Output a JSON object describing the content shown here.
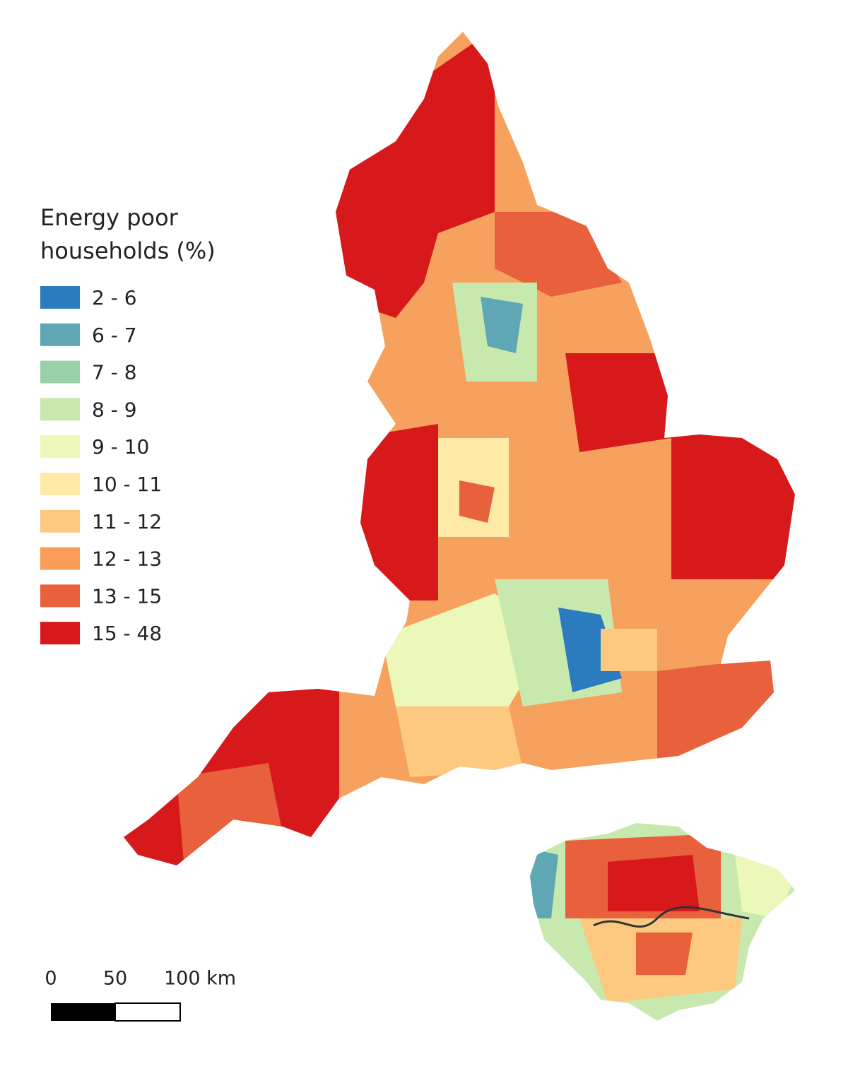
{
  "legend": {
    "title_lines": [
      "Energy poor",
      "households (%)"
    ],
    "items": [
      {
        "label": "2 - 6",
        "color": "#2b7bbf"
      },
      {
        "label": "6 - 7",
        "color": "#60a7b5"
      },
      {
        "label": "7 - 8",
        "color": "#99d1a8"
      },
      {
        "label": "8 - 9",
        "color": "#c8e9ae"
      },
      {
        "label": "9 - 10",
        "color": "#ecf7ba"
      },
      {
        "label": "10 - 11",
        "color": "#feeaa6"
      },
      {
        "label": "11 - 12",
        "color": "#fdc980"
      },
      {
        "label": "12 - 13",
        "color": "#f99d59"
      },
      {
        "label": "13 - 15",
        "color": "#e8603c"
      },
      {
        "label": "15 - 48",
        "color": "#d7191c"
      }
    ]
  },
  "scale_bar": {
    "labels": [
      "0",
      "50",
      "100 km"
    ]
  }
}
